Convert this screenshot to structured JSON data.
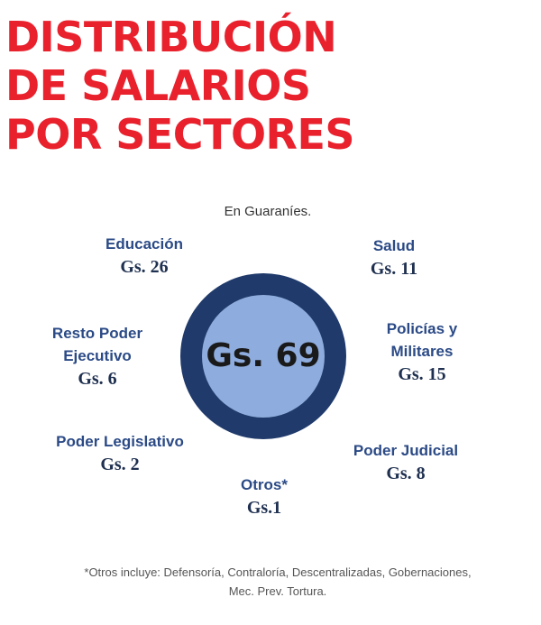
{
  "title_lines": [
    "DISTRIBUCIÓN",
    "DE SALARIOS",
    "POR SECTORES"
  ],
  "subtitle": "En Guaraníes.",
  "total_label": "Gs. 69",
  "footnote_lines": [
    "*Otros incluye: Defensoría, Contraloría, Descentralizadas, Gobernaciones,",
    "Mec. Prev. Tortura."
  ],
  "colors": {
    "title": "#e8212d",
    "ring_outer": "#1f3a6b",
    "ring_inner": "#8eacdd",
    "label": "#2b4a86"
  },
  "chart_data": {
    "type": "pie",
    "title": "DISTRIBUCIÓN DE SALARIOS POR SECTORES",
    "subtitle": "En Guaraníes.",
    "total": 69,
    "total_label": "Gs. 69",
    "unit": "Gs.",
    "sectors": [
      {
        "name": "Educación",
        "value_label": "Gs. 26",
        "value": 26
      },
      {
        "name": "Salud",
        "value_label": "Gs. 11",
        "value": 11
      },
      {
        "name": "Policías y\nMilitares",
        "value_label": "Gs. 15",
        "value": 15
      },
      {
        "name": "Poder Judicial",
        "value_label": "Gs. 8",
        "value": 8
      },
      {
        "name": "Otros*",
        "value_label": "Gs.1",
        "value": 1
      },
      {
        "name": "Poder Legislativo",
        "value_label": "Gs. 2",
        "value": 2
      },
      {
        "name": "Resto Poder\nEjecutivo",
        "value_label": "Gs. 6",
        "value": 6
      }
    ]
  }
}
